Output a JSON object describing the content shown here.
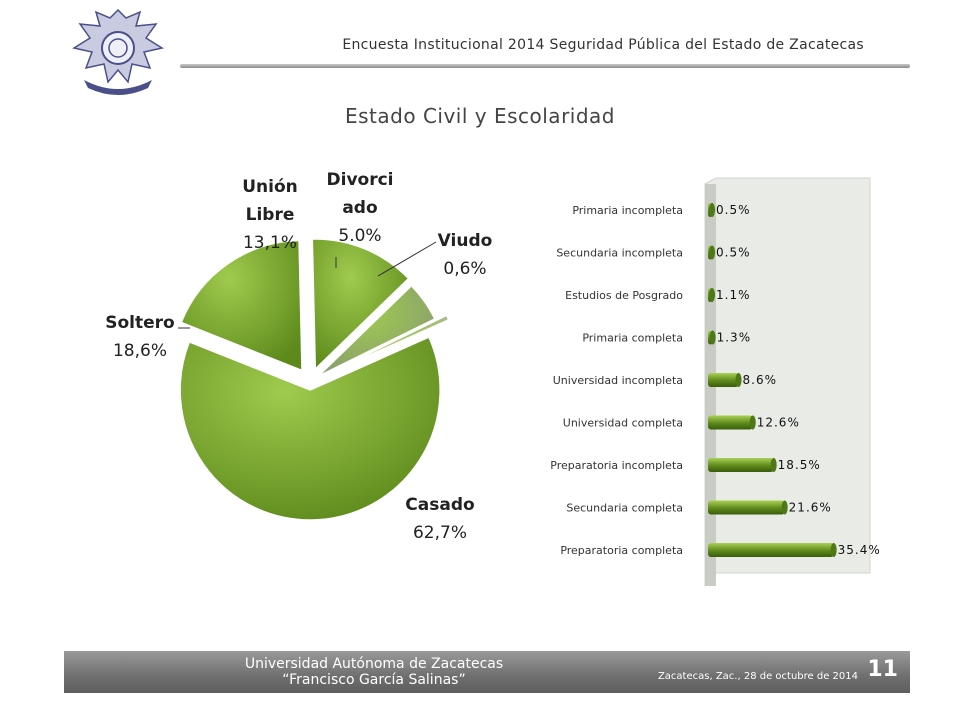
{
  "header": {
    "title": "Encuesta Institucional 2014 Seguridad Pública del Estado de Zacatecas",
    "logo_icon": "university-eagle-seal-icon"
  },
  "slide_title": "Estado Civil y Escolaridad",
  "chart_data": [
    {
      "type": "pie",
      "title": "",
      "series": [
        {
          "name": "",
          "labels": [
            "Casado",
            "Soltero",
            "Unión Libre",
            "Divorciado",
            "Viudo"
          ],
          "values": [
            62.7,
            18.6,
            13.1,
            5.0,
            0.6
          ],
          "value_labels": [
            "62,7%",
            "18,6%",
            "13,1%",
            "5.0%",
            "0,6%"
          ],
          "label_lines": [
            [
              "Casado"
            ],
            [
              "Soltero"
            ],
            [
              "Unión",
              "Libre"
            ],
            [
              "Divorci",
              "ado"
            ],
            [
              "Viudo"
            ]
          ]
        }
      ],
      "colors": [
        "#5e8a1c",
        "#5e8a1c",
        "#5e8a1c",
        "#8a9d70",
        "#a8b88e"
      ],
      "exploded": true,
      "legend": "none"
    },
    {
      "type": "bar",
      "orientation": "horizontal",
      "title": "",
      "categories": [
        "Primaria incompleta",
        "Secundaria incompleta",
        "Estudios de Posgrado",
        "Primaria completa",
        "Universidad incompleta",
        "Universidad completa",
        "Preparatoria incompleta",
        "Secundaria completa",
        "Preparatoria completa"
      ],
      "values": [
        0.5,
        0.5,
        1.1,
        1.3,
        8.6,
        12.6,
        18.5,
        21.6,
        35.4
      ],
      "value_labels": [
        "0.5%",
        "0.5%",
        "1.1%",
        "1.3%",
        "8.6%",
        "12.6%",
        "18.5%",
        "21.6%",
        "35.4%"
      ],
      "xlim": [
        0,
        40
      ],
      "grid": false,
      "legend": "none",
      "color": "#5e8a1c"
    }
  ],
  "footer": {
    "university": "Universidad Autónoma de Zacatecas",
    "name": "“Francisco García Salinas”",
    "date": "Zacatecas, Zac., 28 de octubre de 2014",
    "page_number": "11"
  }
}
